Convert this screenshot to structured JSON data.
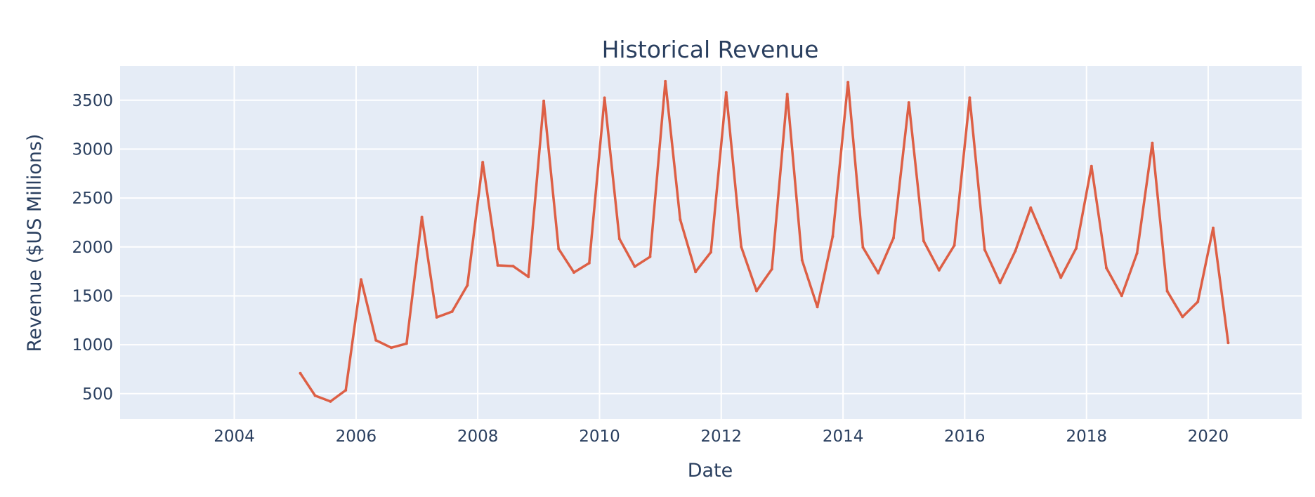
{
  "chart_data": {
    "type": "line",
    "title": "Historical Revenue",
    "xlabel": "Date",
    "ylabel": "Revenue ($US Millions)",
    "x_axis_type": "date",
    "xlim": [
      "2002-02-15",
      "2021-07-15"
    ],
    "ylim": [
      240,
      3850
    ],
    "x_ticks": [
      "2004",
      "2006",
      "2008",
      "2010",
      "2012",
      "2014",
      "2016",
      "2018",
      "2020"
    ],
    "y_ticks": [
      500,
      1000,
      1500,
      2000,
      2500,
      3000,
      3500
    ],
    "grid": true,
    "legend": false,
    "colors": {
      "line": "#dd5f45",
      "plot_bg": "#e5ecf6",
      "grid": "#ffffff",
      "text": "#2a3f5f"
    },
    "series": [
      {
        "x": [
          "2005-01-31",
          "2005-04-30",
          "2005-07-31",
          "2005-10-31",
          "2006-01-31",
          "2006-04-30",
          "2006-07-31",
          "2006-10-31",
          "2007-01-31",
          "2007-04-30",
          "2007-07-31",
          "2007-10-31",
          "2008-01-31",
          "2008-04-30",
          "2008-07-31",
          "2008-10-31",
          "2009-01-31",
          "2009-04-30",
          "2009-07-31",
          "2009-10-31",
          "2010-01-31",
          "2010-04-30",
          "2010-07-31",
          "2010-10-31",
          "2011-01-31",
          "2011-04-30",
          "2011-07-31",
          "2011-10-31",
          "2012-01-31",
          "2012-04-30",
          "2012-07-31",
          "2012-10-31",
          "2013-01-31",
          "2013-04-30",
          "2013-07-31",
          "2013-10-31",
          "2014-01-31",
          "2014-04-30",
          "2014-07-31",
          "2014-10-31",
          "2015-01-31",
          "2015-04-30",
          "2015-07-31",
          "2015-10-31",
          "2016-01-31",
          "2016-04-30",
          "2016-07-31",
          "2016-10-31",
          "2017-01-31",
          "2017-04-30",
          "2017-07-31",
          "2017-10-31",
          "2018-01-31",
          "2018-04-30",
          "2018-07-31",
          "2018-10-31",
          "2019-01-31",
          "2019-04-30",
          "2019-07-31",
          "2019-10-31",
          "2020-01-31",
          "2020-04-30"
        ],
        "values": [
          709,
          480,
          420,
          535,
          1667,
          1046,
          970,
          1012,
          2304,
          1281,
          1339,
          1608,
          2866,
          1812,
          1804,
          1695,
          3492,
          1981,
          1739,
          1835,
          3524,
          2083,
          1799,
          1899,
          3693,
          2281,
          1746,
          1947,
          3579,
          2002,
          1550,
          1773,
          3562,
          1865,
          1386,
          2107,
          3684,
          1996,
          1733,
          2092,
          3476,
          2061,
          1762,
          2016,
          3525,
          1972,
          1632,
          1959,
          2400,
          2046,
          1687,
          1986,
          2825,
          1786,
          1501,
          1935,
          3063,
          1548,
          1285,
          1439,
          2194,
          1021
        ]
      }
    ]
  }
}
